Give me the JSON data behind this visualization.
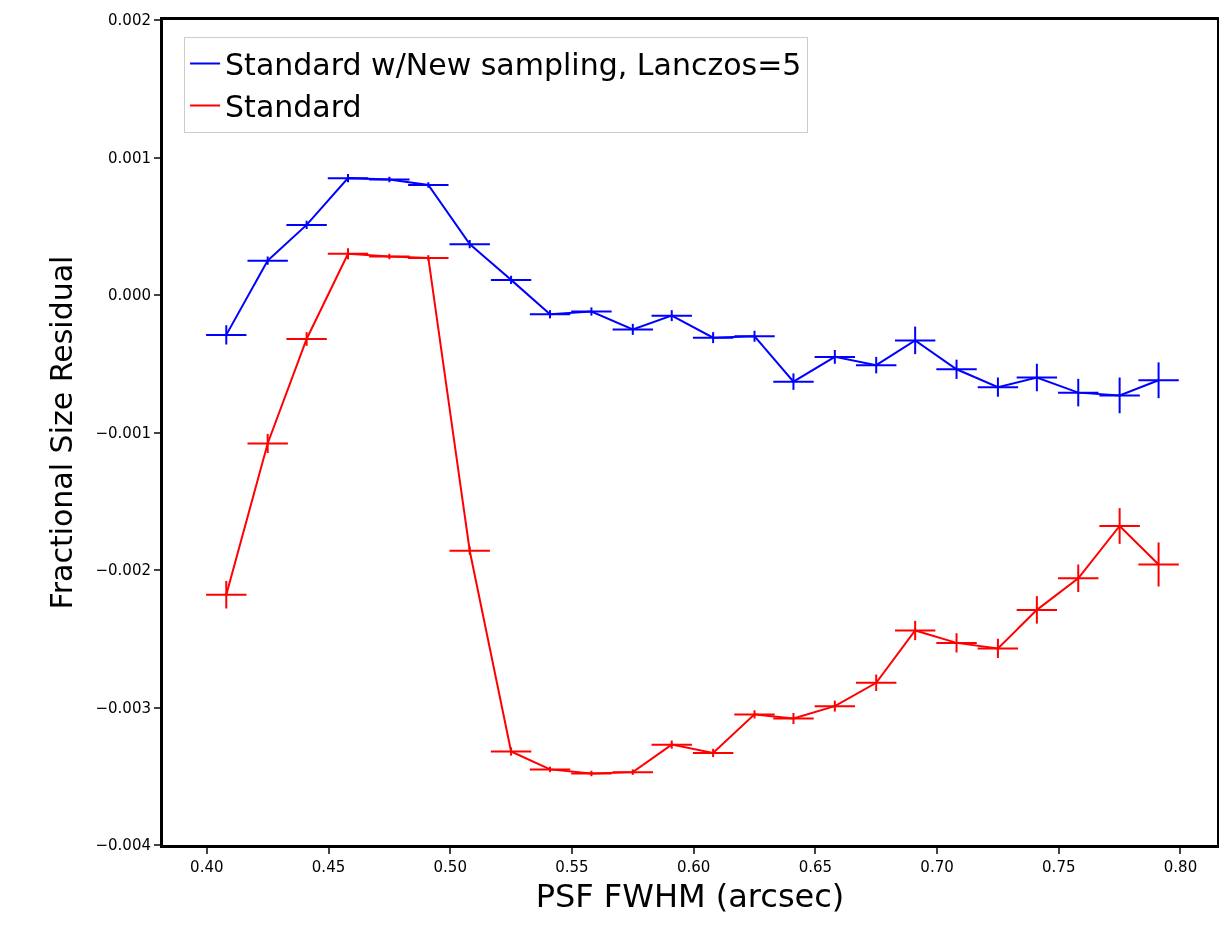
{
  "chart_data": {
    "type": "line",
    "xlabel": "PSF FWHM (arcsec)",
    "ylabel": "Fractional Size Residual",
    "x": [
      0.408,
      0.425,
      0.441,
      0.458,
      0.475,
      0.491,
      0.508,
      0.525,
      0.541,
      0.558,
      0.575,
      0.591,
      0.608,
      0.625,
      0.641,
      0.658,
      0.675,
      0.691,
      0.708,
      0.725,
      0.741,
      0.758,
      0.775,
      0.791
    ],
    "series": [
      {
        "name": "Standard w/New sampling, Lanczos=5",
        "color": "#0000ff",
        "values": [
          -0.00029,
          0.00025,
          0.00051,
          0.00085,
          0.00084,
          0.0008,
          0.00037,
          0.00011,
          -0.00014,
          -0.00012,
          -0.00025,
          -0.00015,
          -0.00031,
          -0.0003,
          -0.00063,
          -0.00045,
          -0.00051,
          -0.00033,
          -0.00054,
          -0.00067,
          -0.0006,
          -0.00071,
          -0.00073,
          -0.00062
        ],
        "errors": [
          7e-05,
          3e-05,
          3e-05,
          3e-05,
          2e-05,
          2e-05,
          3e-05,
          3e-05,
          3e-05,
          3e-05,
          4e-05,
          4e-05,
          4e-05,
          4e-05,
          6e-05,
          5e-05,
          6e-05,
          0.0001,
          7e-05,
          7e-05,
          0.0001,
          0.0001,
          0.00013,
          0.00013
        ],
        "xerrors": [
          0.0083,
          0.0083,
          0.0083,
          0.0083,
          0.0083,
          0.0083,
          0.0083,
          0.0083,
          0.0083,
          0.0083,
          0.0083,
          0.0083,
          0.0083,
          0.0083,
          0.0083,
          0.0083,
          0.0083,
          0.0083,
          0.0083,
          0.0083,
          0.0083,
          0.0083,
          0.0083,
          0.0083
        ]
      },
      {
        "name": "Standard",
        "color": "#ff0000",
        "values": [
          -0.00218,
          -0.00108,
          -0.00032,
          0.0003,
          0.00028,
          0.00027,
          -0.00186,
          -0.00332,
          -0.00345,
          -0.00348,
          -0.00347,
          -0.00327,
          -0.00333,
          -0.00305,
          -0.00308,
          -0.00299,
          -0.00282,
          -0.00244,
          -0.00253,
          -0.00257,
          -0.00229,
          -0.00206,
          -0.00168,
          -0.00196
        ],
        "errors": [
          0.0001,
          7e-05,
          5e-05,
          4e-05,
          2e-05,
          2e-05,
          3e-05,
          3e-05,
          2e-05,
          2e-05,
          2e-05,
          3e-05,
          3e-05,
          3e-05,
          4e-05,
          4e-05,
          6e-05,
          7e-05,
          7e-05,
          7e-05,
          0.0001,
          0.0001,
          0.00013,
          0.00016
        ],
        "xerrors": [
          0.0083,
          0.0083,
          0.0083,
          0.0083,
          0.0083,
          0.0083,
          0.0083,
          0.0083,
          0.0083,
          0.0083,
          0.0083,
          0.0083,
          0.0083,
          0.0083,
          0.0083,
          0.0083,
          0.0083,
          0.0083,
          0.0083,
          0.0083,
          0.0083,
          0.0083,
          0.0083,
          0.0083
        ]
      }
    ],
    "xlim": [
      0.382,
      0.815
    ],
    "xticks": [
      {
        "value": 0.4,
        "label": "0.40"
      },
      {
        "value": 0.45,
        "label": "0.45"
      },
      {
        "value": 0.5,
        "label": "0.50"
      },
      {
        "value": 0.55,
        "label": "0.55"
      },
      {
        "value": 0.6,
        "label": "0.60"
      },
      {
        "value": 0.65,
        "label": "0.65"
      },
      {
        "value": 0.7,
        "label": "0.70"
      },
      {
        "value": 0.75,
        "label": "0.75"
      },
      {
        "value": 0.8,
        "label": "0.80"
      }
    ],
    "ylim": [
      -0.004,
      0.002
    ],
    "yticks": [
      {
        "value": -0.004,
        "label": "−0.004"
      },
      {
        "value": -0.003,
        "label": "−0.003"
      },
      {
        "value": -0.002,
        "label": "−0.002"
      },
      {
        "value": -0.001,
        "label": "−0.001"
      },
      {
        "value": 0,
        "label": "0.000"
      },
      {
        "value": 0.001,
        "label": "0.001"
      },
      {
        "value": 0.002,
        "label": "0.002"
      }
    ],
    "grid": false,
    "legend": "top left",
    "marker": "none",
    "line_style": "solid"
  }
}
